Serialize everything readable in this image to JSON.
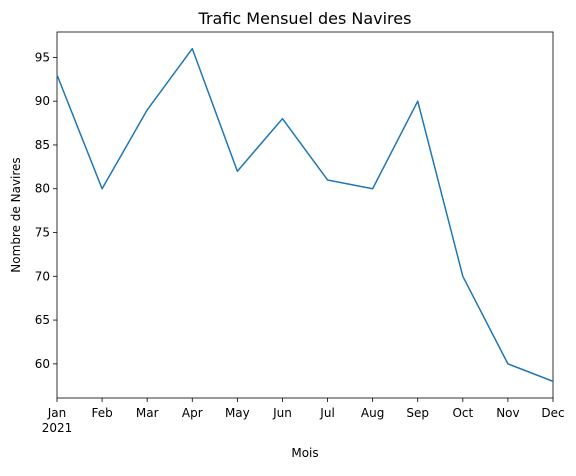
{
  "chart_data": {
    "type": "line",
    "title": "Trafic Mensuel des Navires",
    "xlabel": "Mois",
    "ylabel": "Nombre de Navires",
    "x": [
      "Jan",
      "Feb",
      "Mar",
      "Apr",
      "May",
      "Jun",
      "Jul",
      "Aug",
      "Sep",
      "Oct",
      "Nov",
      "Dec"
    ],
    "x_year_label": "2021",
    "series": [
      {
        "values": [
          93,
          80,
          89,
          96,
          82,
          88,
          81,
          80,
          90,
          70,
          60,
          58
        ],
        "color": "#1f77b4"
      }
    ],
    "ylim": [
      56.1,
      97.9
    ],
    "yticks": [
      60,
      65,
      70,
      75,
      80,
      85,
      90,
      95
    ],
    "grid": false,
    "legend": "none"
  }
}
